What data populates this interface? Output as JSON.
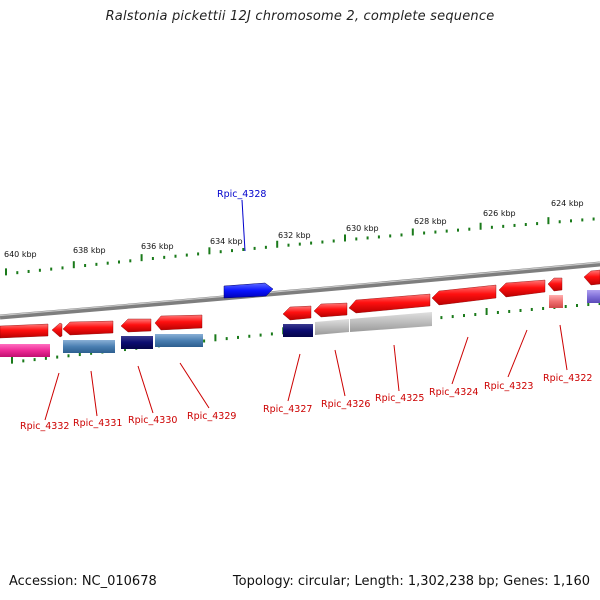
{
  "title": "Ralstonia pickettii 12J chromosome 2, complete sequence",
  "footer": {
    "accession": "Accession: NC_010678",
    "stats": "Topology: circular; Length: 1,302,238 bp; Genes: 1,160"
  },
  "colors": {
    "backbone": "#8a8a8a",
    "tick": "#1a7a1a",
    "forward_gene": "#ff0000",
    "highlight_gene": "#0000ff",
    "label_red": "#cc0000",
    "label_blue": "#0000cc"
  },
  "ticks": [
    "640 kbp",
    "638 kbp",
    "636 kbp",
    "634 kbp",
    "632 kbp",
    "630 kbp",
    "628 kbp",
    "626 kbp",
    "624 kbp"
  ],
  "highlight_gene": {
    "label": "Rpic_4328"
  },
  "gene_labels": [
    "Rpic_4332",
    "Rpic_4331",
    "Rpic_4330",
    "Rpic_4329",
    "Rpic_4327",
    "Rpic_4326",
    "Rpic_4325",
    "Rpic_4324",
    "Rpic_4323",
    "Rpic_4322"
  ]
}
